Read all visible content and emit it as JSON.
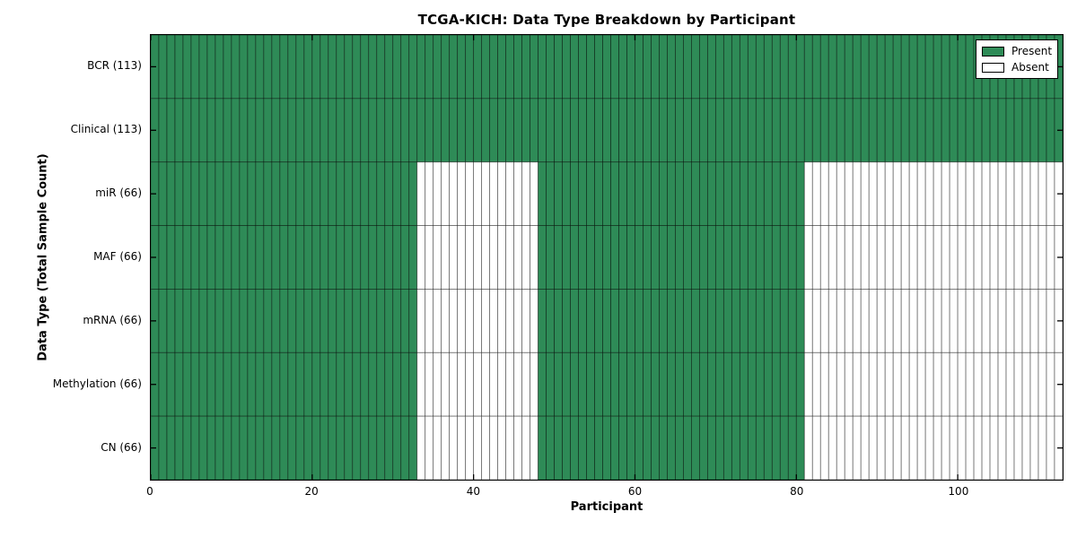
{
  "chart_data": {
    "type": "heatmap",
    "title": "TCGA-KICH: Data Type Breakdown by Participant",
    "xlabel": "Participant",
    "ylabel": "Data Type (Total Sample Count)",
    "xlim": [
      0,
      113
    ],
    "x_ticks": [
      0,
      20,
      40,
      60,
      80,
      100
    ],
    "n_participants": 113,
    "rows": [
      {
        "label": "BCR (113)",
        "data_type": "BCR",
        "total_samples": 113,
        "present_ranges": [
          [
            0,
            113
          ]
        ]
      },
      {
        "label": "Clinical (113)",
        "data_type": "Clinical",
        "total_samples": 113,
        "present_ranges": [
          [
            0,
            113
          ]
        ]
      },
      {
        "label": "miR (66)",
        "data_type": "miR",
        "total_samples": 66,
        "present_ranges": [
          [
            0,
            33
          ],
          [
            48,
            81
          ]
        ]
      },
      {
        "label": "MAF (66)",
        "data_type": "MAF",
        "total_samples": 66,
        "present_ranges": [
          [
            0,
            33
          ],
          [
            48,
            81
          ]
        ]
      },
      {
        "label": "mRNA (66)",
        "data_type": "mRNA",
        "total_samples": 66,
        "present_ranges": [
          [
            0,
            33
          ],
          [
            48,
            81
          ]
        ]
      },
      {
        "label": "Methylation (66)",
        "data_type": "Methylation",
        "total_samples": 66,
        "present_ranges": [
          [
            0,
            33
          ],
          [
            48,
            81
          ]
        ]
      },
      {
        "label": "CN (66)",
        "data_type": "CN",
        "total_samples": 66,
        "present_ranges": [
          [
            0,
            33
          ],
          [
            48,
            81
          ]
        ]
      }
    ],
    "legend": [
      {
        "label": "Present",
        "color": "#2e8b57"
      },
      {
        "label": "Absent",
        "color": "#ffffff"
      }
    ],
    "colors": {
      "present": "#2e8b57",
      "absent": "#ffffff",
      "cell_edge": "rgba(0,0,0,0.5)",
      "axis": "#000000",
      "background": "#ffffff"
    },
    "legend_position": "upper right",
    "grid": "cell-borders",
    "tick_direction": "in"
  }
}
